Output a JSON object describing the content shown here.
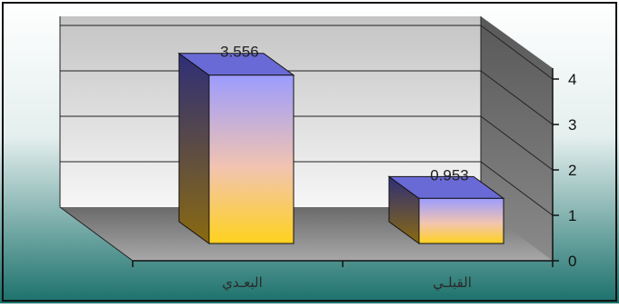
{
  "chart_data": {
    "type": "bar",
    "categories": [
      "البعـدي",
      "القبلـي"
    ],
    "values": [
      3.556,
      0.953
    ],
    "data_labels": [
      "3.556",
      "0.953"
    ],
    "title": "",
    "xlabel": "",
    "ylabel": "",
    "ylim": [
      0,
      4
    ],
    "yticks": [
      "0",
      "1",
      "2",
      "3",
      "4"
    ],
    "grid": true,
    "legend": "none",
    "colors": {
      "bar_front_top": "#9c9cff",
      "bar_front_mid": "#f2c4b0",
      "bar_front_bottom": "#ffd21e",
      "bar_top": "#6a6ad6",
      "bar_side": "#3a3a88",
      "background_top": "#ffffff",
      "background_bottom": "#1a706b",
      "back_wall": "#d0d0d0",
      "side_wall": "#606060",
      "floor": "#8a8a8a"
    }
  }
}
